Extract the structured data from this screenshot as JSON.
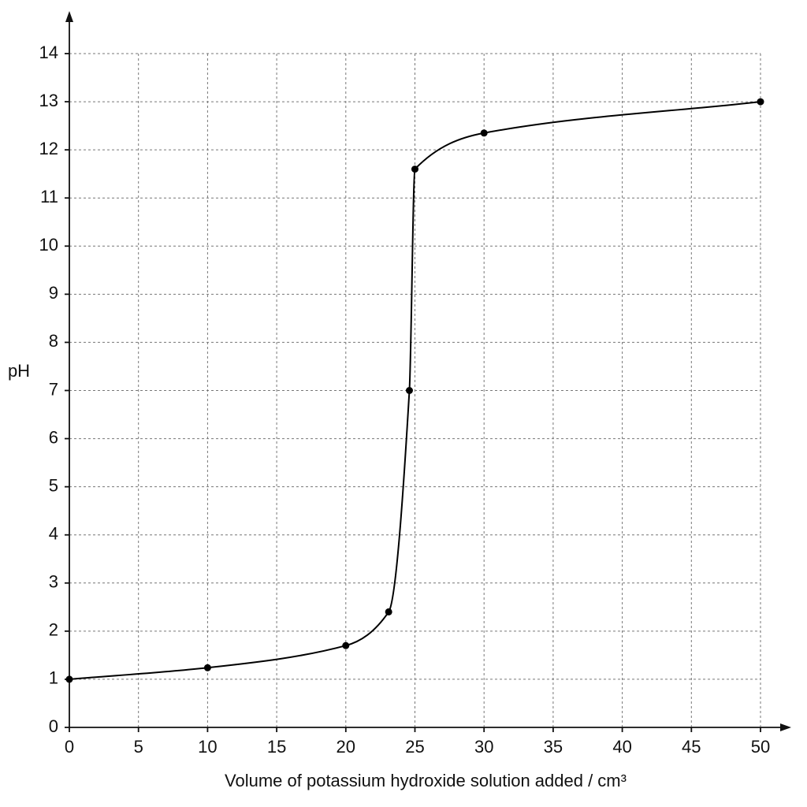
{
  "chart_data": {
    "type": "line",
    "x_label": "Volume of potassium hydroxide solution added / cm³",
    "y_label": "pH",
    "x": [
      0,
      10,
      20,
      23.1,
      24.6,
      25,
      30,
      50
    ],
    "series": [
      {
        "color": "#000000",
        "values": [
          1.0,
          1.24,
          1.7,
          2.4,
          7.0,
          11.6,
          12.35,
          13.0
        ]
      }
    ],
    "xlim": [
      0,
      50
    ],
    "xticks": [
      0,
      5,
      10,
      15,
      20,
      25,
      30,
      35,
      40,
      45,
      50
    ],
    "ylim": [
      0,
      14
    ],
    "yticks": [
      0,
      1,
      2,
      3,
      4,
      5,
      6,
      7,
      8,
      9,
      10,
      11,
      12,
      13,
      14
    ],
    "grid": true
  }
}
